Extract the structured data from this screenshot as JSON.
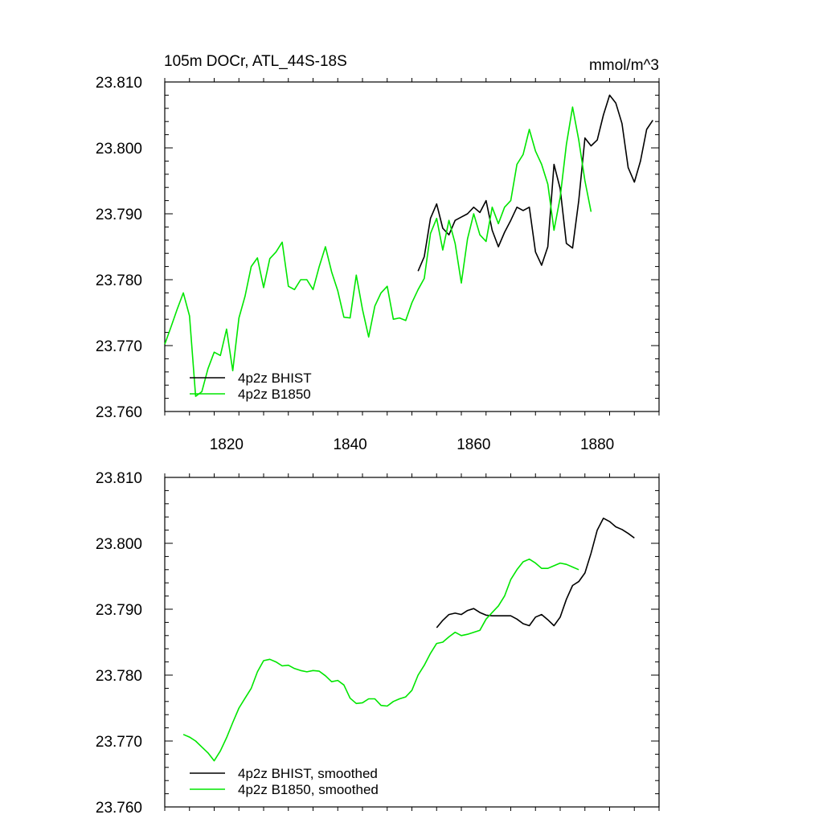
{
  "colors": {
    "bhist": "#000000",
    "b1850": "#00e600"
  },
  "chart_data": [
    {
      "type": "line",
      "title": "105m DOCr, ATL_44S-18S",
      "units": "mmol/m^3",
      "xlim": [
        1810,
        1890
      ],
      "ylim": [
        23.76,
        23.81
      ],
      "xticks": [
        1820,
        1840,
        1860,
        1880
      ],
      "xtick_labels": [
        "1820",
        "1840",
        "1860",
        "1880"
      ],
      "yticks": [
        23.76,
        23.77,
        23.78,
        23.79,
        23.8,
        23.81
      ],
      "ytick_labels": [
        "23.760",
        "23.770",
        "23.780",
        "23.790",
        "23.800",
        "23.810"
      ],
      "legend_position": "bottom-left",
      "series": [
        {
          "name": "4p2z BHIST",
          "color": "#000000",
          "x": [
            1851,
            1852,
            1853,
            1854,
            1855,
            1856,
            1857,
            1858,
            1859,
            1860,
            1861,
            1862,
            1863,
            1864,
            1865,
            1866,
            1867,
            1868,
            1869,
            1870,
            1871,
            1872,
            1873,
            1874,
            1875,
            1876,
            1877,
            1878,
            1879,
            1880,
            1881,
            1882,
            1883,
            1884,
            1885,
            1886,
            1887,
            1888,
            1889
          ],
          "y": [
            23.7813,
            23.7835,
            23.7893,
            23.7915,
            23.7878,
            23.7868,
            23.789,
            23.7895,
            23.79,
            23.791,
            23.7902,
            23.792,
            23.7875,
            23.785,
            23.7872,
            23.789,
            23.791,
            23.7905,
            23.791,
            23.7842,
            23.7822,
            23.785,
            23.7975,
            23.7938,
            23.7855,
            23.7848,
            23.792,
            23.8015,
            23.8003,
            23.8012,
            23.805,
            23.808,
            23.8068,
            23.8037,
            23.797,
            23.7948,
            23.798,
            23.8028,
            23.8042
          ]
        },
        {
          "name": "4p2z B1850",
          "color": "#00e600",
          "x": [
            1810,
            1811,
            1812,
            1813,
            1814,
            1815,
            1816,
            1817,
            1818,
            1819,
            1820,
            1821,
            1822,
            1823,
            1824,
            1825,
            1826,
            1827,
            1828,
            1829,
            1830,
            1831,
            1832,
            1833,
            1834,
            1835,
            1836,
            1837,
            1838,
            1839,
            1840,
            1841,
            1842,
            1843,
            1844,
            1845,
            1846,
            1847,
            1848,
            1849,
            1850,
            1851,
            1852,
            1853,
            1854,
            1855,
            1856,
            1857,
            1858,
            1859,
            1860,
            1861,
            1862,
            1863,
            1864,
            1865,
            1866,
            1867,
            1868,
            1869,
            1870,
            1871,
            1872,
            1873,
            1874,
            1875,
            1876,
            1877,
            1878,
            1879
          ],
          "y": [
            23.7702,
            23.7728,
            23.7755,
            23.778,
            23.7745,
            23.7623,
            23.763,
            23.7665,
            23.769,
            23.7685,
            23.7725,
            23.7662,
            23.7742,
            23.7775,
            23.782,
            23.7833,
            23.7788,
            23.7832,
            23.7842,
            23.7857,
            23.779,
            23.7785,
            23.78,
            23.78,
            23.7785,
            23.782,
            23.785,
            23.7812,
            23.7783,
            23.7743,
            23.7742,
            23.7807,
            23.7755,
            23.7713,
            23.776,
            23.778,
            23.779,
            23.774,
            23.7742,
            23.7738,
            23.7765,
            23.7785,
            23.7802,
            23.787,
            23.7893,
            23.7845,
            23.789,
            23.7855,
            23.7795,
            23.7862,
            23.79,
            23.7868,
            23.7858,
            23.791,
            23.7885,
            23.791,
            23.792,
            23.7975,
            23.799,
            23.8028,
            23.7995,
            23.7975,
            23.7945,
            23.7875,
            23.7925,
            23.8005,
            23.8062,
            23.8012,
            23.795,
            23.7903
          ]
        }
      ]
    },
    {
      "type": "line",
      "title": "",
      "xlim": [
        1810,
        1890
      ],
      "ylim": [
        23.76,
        23.81
      ],
      "xticks": [
        1820,
        1840,
        1860,
        1880
      ],
      "yticks": [
        23.76,
        23.77,
        23.78,
        23.79,
        23.8,
        23.81
      ],
      "ytick_labels": [
        "23.760",
        "23.770",
        "23.780",
        "23.790",
        "23.800",
        "23.810"
      ],
      "legend_position": "bottom-left",
      "series": [
        {
          "name": "4p2z BHIST, smoothed",
          "color": "#000000",
          "x": [
            1854,
            1855,
            1856,
            1857,
            1858,
            1859,
            1860,
            1861,
            1862,
            1863,
            1864,
            1865,
            1866,
            1867,
            1868,
            1869,
            1870,
            1871,
            1872,
            1873,
            1874,
            1875,
            1876,
            1877,
            1878,
            1879,
            1880,
            1881,
            1882,
            1883,
            1884,
            1885,
            1886
          ],
          "y": [
            23.7872,
            23.7883,
            23.7892,
            23.7894,
            23.7892,
            23.7898,
            23.7901,
            23.7895,
            23.7891,
            23.789,
            23.789,
            23.789,
            23.789,
            23.7885,
            23.7878,
            23.7875,
            23.7888,
            23.7892,
            23.7884,
            23.7875,
            23.7888,
            23.7915,
            23.7936,
            23.7942,
            23.7955,
            23.7985,
            23.802,
            23.8038,
            23.8033,
            23.8025,
            23.8021,
            23.8015,
            23.8008
          ]
        },
        {
          "name": "4p2z B1850, smoothed",
          "color": "#00e600",
          "x": [
            1813,
            1814,
            1815,
            1816,
            1817,
            1818,
            1819,
            1820,
            1821,
            1822,
            1823,
            1824,
            1825,
            1826,
            1827,
            1828,
            1829,
            1830,
            1831,
            1832,
            1833,
            1834,
            1835,
            1836,
            1837,
            1838,
            1839,
            1840,
            1841,
            1842,
            1843,
            1844,
            1845,
            1846,
            1847,
            1848,
            1849,
            1850,
            1851,
            1852,
            1853,
            1854,
            1855,
            1856,
            1857,
            1858,
            1859,
            1860,
            1861,
            1862,
            1863,
            1864,
            1865,
            1866,
            1867,
            1868,
            1869,
            1870,
            1871,
            1872,
            1873,
            1874,
            1875,
            1876,
            1877
          ],
          "y": [
            23.771,
            23.7706,
            23.77,
            23.7691,
            23.7682,
            23.767,
            23.7685,
            23.7705,
            23.7728,
            23.775,
            23.7765,
            23.778,
            23.7805,
            23.7822,
            23.7824,
            23.782,
            23.7814,
            23.7815,
            23.781,
            23.7807,
            23.7805,
            23.7807,
            23.7806,
            23.7799,
            23.779,
            23.7792,
            23.7785,
            23.7765,
            23.7757,
            23.7758,
            23.7764,
            23.7764,
            23.7754,
            23.7753,
            23.776,
            23.7764,
            23.7767,
            23.7777,
            23.78,
            23.7815,
            23.7833,
            23.7848,
            23.785,
            23.7858,
            23.7865,
            23.786,
            23.7862,
            23.7865,
            23.7868,
            23.7885,
            23.7895,
            23.7905,
            23.792,
            23.7945,
            23.796,
            23.7972,
            23.7976,
            23.797,
            23.7962,
            23.7962,
            23.7966,
            23.797,
            23.7968,
            23.7964,
            23.796
          ]
        }
      ]
    }
  ]
}
